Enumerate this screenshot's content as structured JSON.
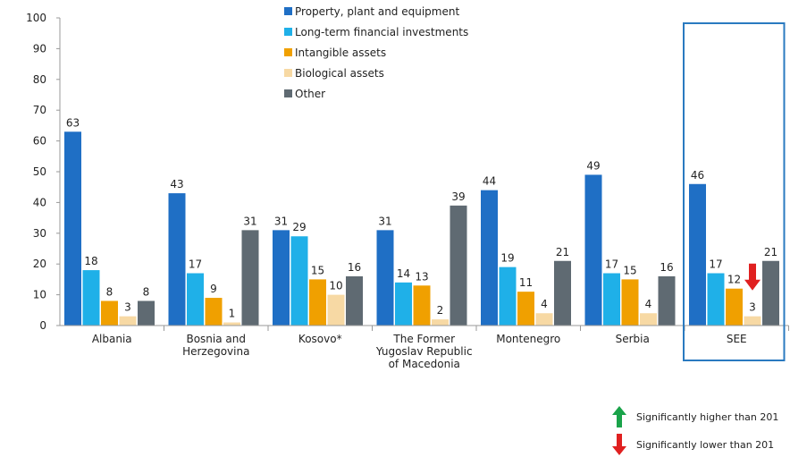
{
  "chart_data": {
    "type": "bar",
    "categories": [
      [
        "Albania"
      ],
      [
        "Bosnia and",
        "Herzegovina"
      ],
      [
        "Kosovo*"
      ],
      [
        "The Former",
        "Yugoslav Republic",
        "of Macedonia"
      ],
      [
        "Montenegro"
      ],
      [
        "Serbia"
      ],
      [
        "SEE"
      ]
    ],
    "series": [
      {
        "name": "Property, plant and equipment",
        "color": "#1f6fc5",
        "values": [
          63,
          43,
          31,
          31,
          44,
          49,
          46
        ]
      },
      {
        "name": "Long-term financial investments",
        "color": "#1fb0e8",
        "values": [
          18,
          17,
          29,
          14,
          19,
          17,
          17
        ]
      },
      {
        "name": "Intangible assets",
        "color": "#f0a000",
        "values": [
          8,
          9,
          15,
          13,
          11,
          15,
          12
        ]
      },
      {
        "name": "Biological assets",
        "color": "#f7d9a4",
        "values": [
          3,
          1,
          10,
          2,
          4,
          4,
          3
        ]
      },
      {
        "name": "Other",
        "color": "#5f6a72",
        "values": [
          8,
          31,
          16,
          39,
          21,
          16,
          21
        ]
      }
    ],
    "ylim": [
      0,
      100
    ],
    "yticks": [
      0,
      10,
      20,
      30,
      40,
      50,
      60,
      70,
      80,
      90,
      100
    ],
    "legend_position": "top-center",
    "highlighted_category": "SEE",
    "significance_marker": {
      "category": "SEE",
      "series": "Intangible assets",
      "direction": "lower"
    },
    "notes": [
      {
        "icon": "green-up-arrow-icon",
        "color": "#1aa34a",
        "text": "Significantly higher than 201"
      },
      {
        "icon": "red-down-arrow-icon",
        "color": "#e02020",
        "text": "Significantly lower than 201"
      }
    ]
  }
}
